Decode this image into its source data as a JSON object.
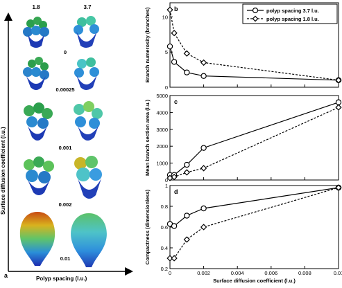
{
  "figure": {
    "panel_a": {
      "letter": "a",
      "ylabel": "Surface diffusion coefficient (l.u.)",
      "xlabel": "Polyp spacing (l.u.)",
      "column_labels": [
        "1.8",
        "3.7"
      ],
      "row_labels": [
        "0",
        "0.00025",
        "0.001",
        "0.002",
        "0.01"
      ]
    }
  },
  "chart_data": [
    {
      "panel": "b",
      "type": "line",
      "ylabel": "Branch numerosity (branches)",
      "xlabel": "",
      "xlim": [
        0,
        0.01
      ],
      "ylim": [
        0,
        12
      ],
      "yticks": [
        "0",
        "5",
        "10"
      ],
      "xticks": [],
      "legend_position": "top-right",
      "series": [
        {
          "name": "polyp spacing 3.7 l.u.",
          "marker": "circle",
          "line": "solid",
          "x": [
            0,
            0.00025,
            0.001,
            0.002,
            0.01
          ],
          "y": [
            5.8,
            3.6,
            2.1,
            1.6,
            1.0
          ]
        },
        {
          "name": "polyp spacing 1.8 l.u.",
          "marker": "diamond",
          "line": "dashed",
          "x": [
            0,
            0.00025,
            0.001,
            0.002,
            0.01
          ],
          "y": [
            11.0,
            7.7,
            4.8,
            3.5,
            1.0
          ]
        }
      ]
    },
    {
      "panel": "c",
      "type": "line",
      "ylabel": "Mean branch section area (l.u.)",
      "xlabel": "",
      "xlim": [
        0,
        0.01
      ],
      "ylim": [
        0,
        5000
      ],
      "yticks": [
        "0",
        "1000",
        "2000",
        "3000",
        "4000",
        "5000"
      ],
      "xticks": [],
      "series": [
        {
          "name": "polyp spacing 3.7 l.u.",
          "marker": "circle",
          "line": "solid",
          "x": [
            0,
            0.00025,
            0.001,
            0.002,
            0.01
          ],
          "y": [
            300,
            300,
            900,
            1900,
            4600
          ]
        },
        {
          "name": "polyp spacing 1.8 l.u.",
          "marker": "diamond",
          "line": "dashed",
          "x": [
            0,
            0.00025,
            0.001,
            0.002,
            0.01
          ],
          "y": [
            120,
            180,
            450,
            700,
            4300
          ]
        }
      ]
    },
    {
      "panel": "d",
      "type": "line",
      "ylabel": "Compactness (dimensionless)",
      "xlabel": "Surface diffusion coefficient (l.u.)",
      "xlim": [
        0,
        0.01
      ],
      "ylim": [
        0.2,
        1.0
      ],
      "yticks": [
        "0.2",
        "0.4",
        "0.6",
        "0.8",
        "1"
      ],
      "xticks": [
        "0",
        "0.002",
        "0.004",
        "0.006",
        "0.008",
        "0.01"
      ],
      "series": [
        {
          "name": "polyp spacing 3.7 l.u.",
          "marker": "circle",
          "line": "solid",
          "x": [
            0,
            0.00025,
            0.001,
            0.002,
            0.01
          ],
          "y": [
            0.63,
            0.61,
            0.71,
            0.78,
            0.98
          ]
        },
        {
          "name": "polyp spacing 1.8 l.u.",
          "marker": "diamond",
          "line": "dashed",
          "x": [
            0,
            0.00025,
            0.001,
            0.002,
            0.01
          ],
          "y": [
            0.3,
            0.3,
            0.48,
            0.6,
            0.98
          ]
        }
      ]
    }
  ]
}
